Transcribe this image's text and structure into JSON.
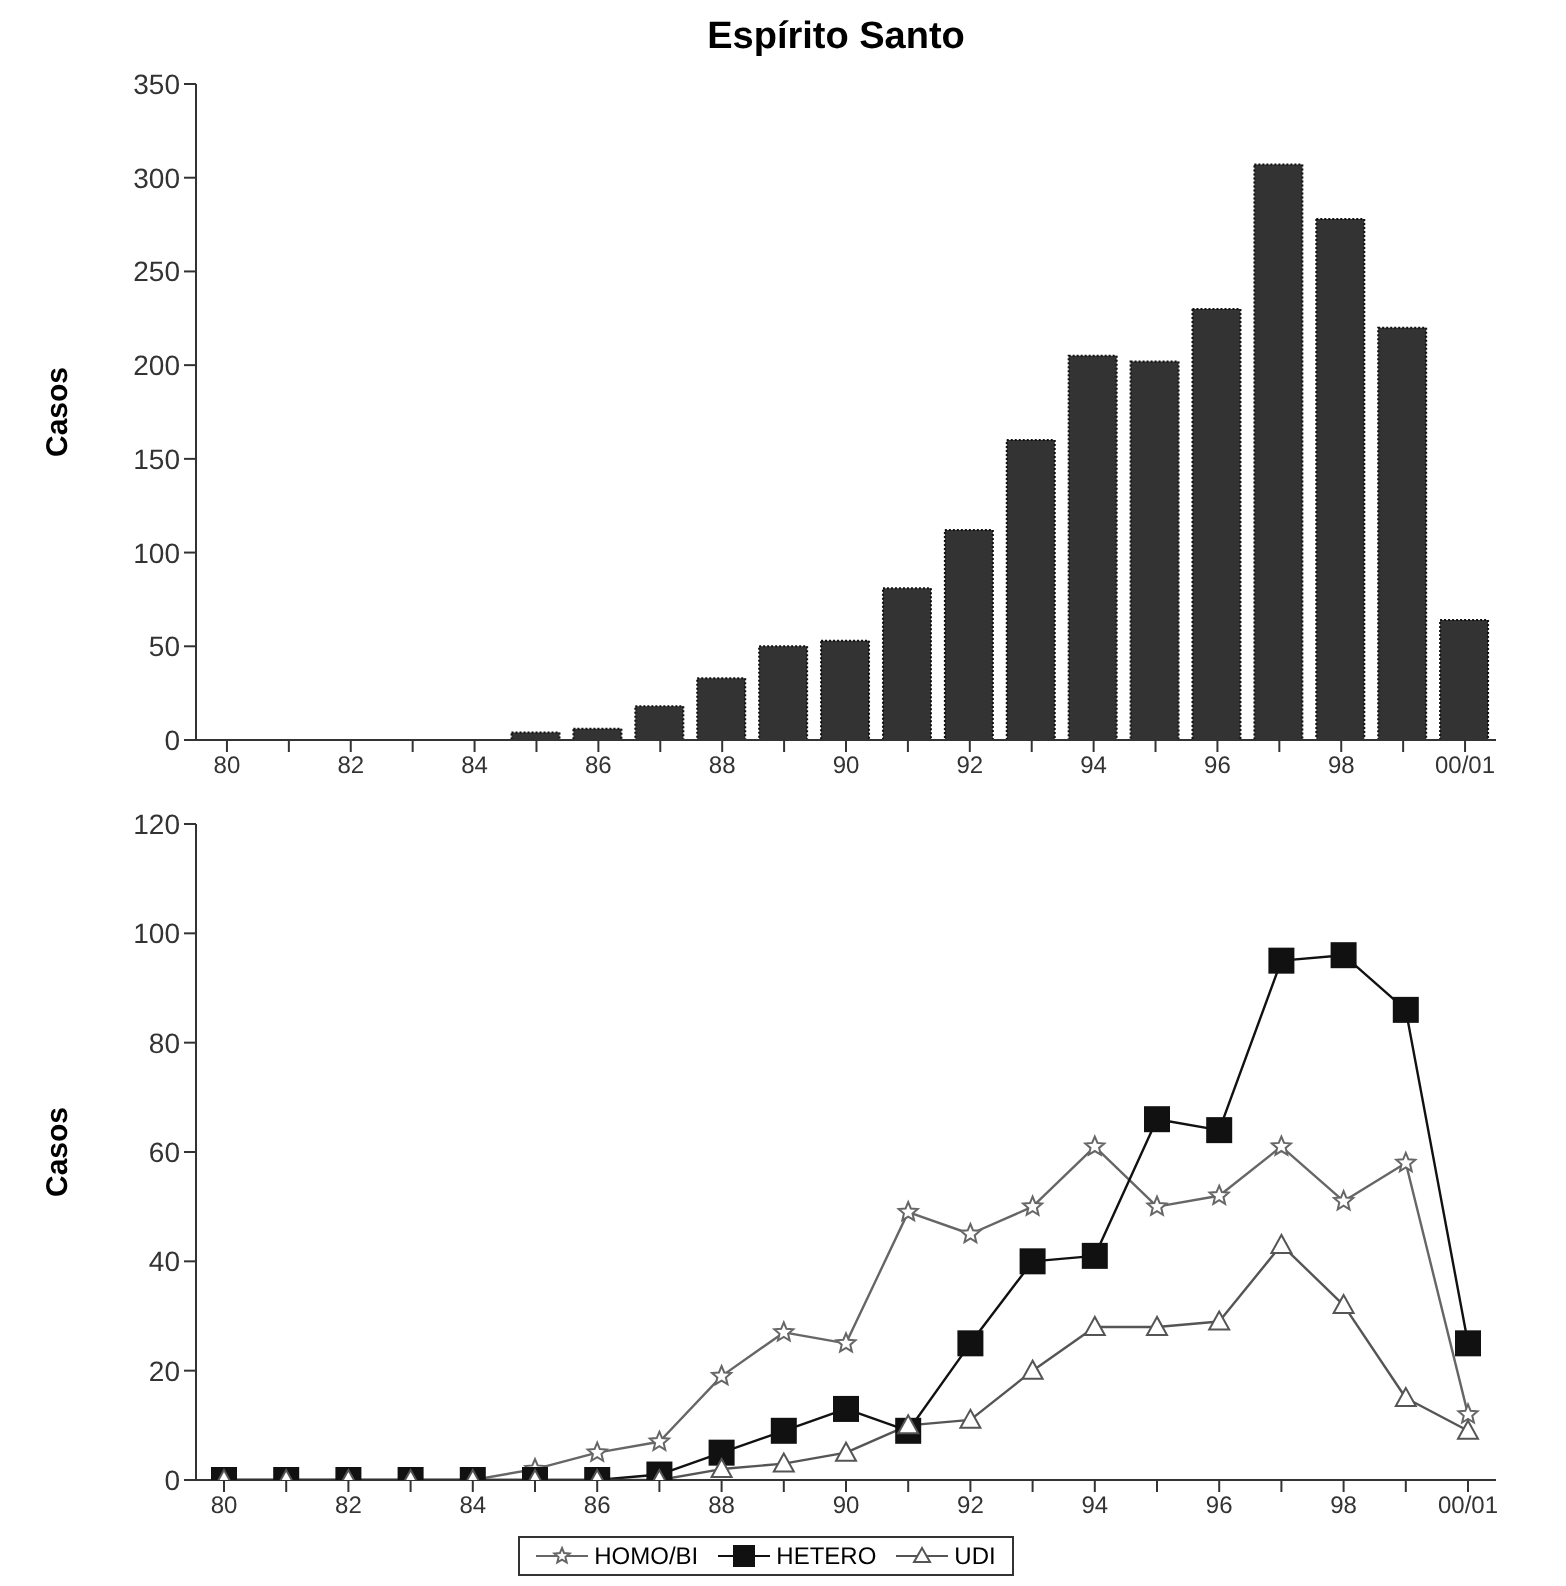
{
  "chart_data": [
    {
      "type": "bar",
      "title": "Espírito Santo",
      "ylabel": "Casos",
      "categories": [
        "80",
        null,
        "82",
        null,
        "84",
        null,
        "86",
        null,
        "88",
        null,
        "90",
        null,
        "92",
        null,
        "94",
        null,
        "96",
        null,
        "98",
        null,
        "00/01"
      ],
      "values": [
        0,
        0,
        0,
        0,
        0,
        4,
        6,
        18,
        33,
        50,
        53,
        81,
        112,
        160,
        205,
        202,
        230,
        307,
        278,
        220,
        64
      ],
      "color": "#333333",
      "ylim": [
        0,
        350
      ],
      "yticks": [
        0,
        50,
        100,
        150,
        200,
        250,
        300,
        350
      ],
      "grid": false,
      "legend": false
    },
    {
      "type": "line",
      "ylabel": "Casos",
      "categories": [
        "80",
        null,
        "82",
        null,
        "84",
        null,
        "86",
        null,
        "88",
        null,
        "90",
        null,
        "92",
        null,
        "94",
        null,
        "96",
        null,
        "98",
        null,
        "00/01"
      ],
      "series": [
        {
          "name": "HOMO/BI",
          "color": "#666666",
          "marker": "star",
          "values": [
            0,
            0,
            0,
            0,
            0,
            2,
            5,
            7,
            19,
            27,
            25,
            49,
            45,
            50,
            61,
            50,
            52,
            61,
            51,
            58,
            12
          ]
        },
        {
          "name": "HETERO",
          "color": "#111111",
          "marker": "square",
          "values": [
            0,
            0,
            0,
            0,
            0,
            0,
            0,
            1,
            5,
            9,
            13,
            9,
            25,
            40,
            41,
            66,
            64,
            95,
            96,
            86,
            25
          ]
        },
        {
          "name": "UDI",
          "color": "#555555",
          "marker": "triangle",
          "values": [
            0,
            0,
            0,
            0,
            0,
            0,
            0,
            0,
            2,
            3,
            5,
            10,
            11,
            20,
            28,
            28,
            29,
            43,
            32,
            15,
            9
          ]
        }
      ],
      "ylim": [
        0,
        120
      ],
      "yticks": [
        0,
        20,
        40,
        60,
        80,
        100,
        120
      ],
      "grid": false,
      "legend": "bottom",
      "line_style": "solid"
    }
  ]
}
